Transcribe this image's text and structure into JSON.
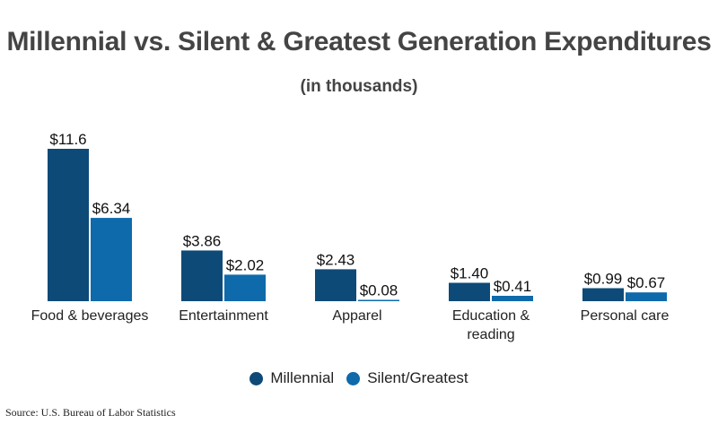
{
  "chart_data": {
    "type": "bar",
    "title": "Millennial vs. Silent & Greatest Generation Expenditures",
    "subtitle": "(in thousands)",
    "categories": [
      "Food & beverages",
      "Entertainment",
      "Apparel",
      "Education & reading",
      "Personal care"
    ],
    "series": [
      {
        "name": "Millennial",
        "color": "#0e4a78",
        "values": [
          11.6,
          3.86,
          2.43,
          1.4,
          0.99
        ],
        "labels": [
          "$11.6",
          "$3.86",
          "$2.43",
          "$1.40",
          "$0.99"
        ]
      },
      {
        "name": "Silent/Greatest",
        "color": "#0e6aaa",
        "values": [
          6.34,
          2.02,
          0.08,
          0.41,
          0.67
        ],
        "labels": [
          "$6.34",
          "$2.02",
          "$0.08",
          "$0.41",
          "$0.67"
        ]
      }
    ],
    "xlabel": "",
    "ylabel": "",
    "ylim": [
      0,
      11.6
    ],
    "grid": false,
    "legend_position": "bottom"
  },
  "source": "Source: U.S. Bureau of Labor Statistics"
}
